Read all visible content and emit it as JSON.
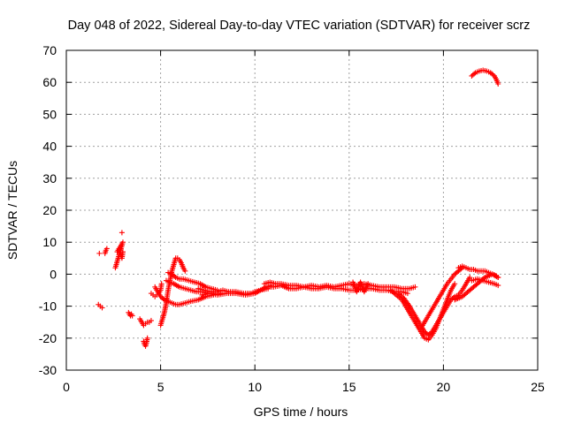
{
  "chart_data": {
    "type": "scatter",
    "title": "Day 048 of 2022, Sidereal Day-to-day VTEC variation (SDTVAR) for receiver scrz",
    "xlabel": "GPS time / hours",
    "ylabel": "SDTVAR / TECUs",
    "xlim": [
      0,
      25
    ],
    "ylim": [
      -30,
      70
    ],
    "xticks": [
      0,
      5,
      10,
      15,
      20,
      25
    ],
    "yticks": [
      -30,
      -20,
      -10,
      0,
      10,
      20,
      30,
      40,
      50,
      60,
      70
    ],
    "grid": true,
    "marker": "+",
    "color": "#ff0000",
    "series": [
      {
        "name": "SDTVAR",
        "segments": [
          {
            "x": [
              1.7,
              1.8,
              1.9
            ],
            "y": [
              -9.5,
              -10,
              -10.5
            ]
          },
          {
            "x": [
              1.75
            ],
            "y": [
              6.5
            ]
          },
          {
            "x": [
              2.05,
              2.1,
              2.15
            ],
            "y": [
              6.5,
              7.5,
              8
            ]
          },
          {
            "x": [
              2.6,
              2.65,
              2.7,
              2.75,
              2.8,
              2.85,
              2.9,
              2.95,
              3.0,
              2.7,
              2.8,
              2.9,
              2.95,
              3.0
            ],
            "y": [
              2,
              3,
              4,
              5,
              6,
              7,
              8,
              9,
              10,
              7,
              8,
              6,
              5,
              7
            ]
          },
          {
            "x": [
              2.95
            ],
            "y": [
              13
            ]
          },
          {
            "x": [
              3.3,
              3.35,
              3.4,
              3.45,
              3.5
            ],
            "y": [
              -12,
              -12.5,
              -13,
              -12.5,
              -13
            ]
          },
          {
            "x": [
              3.9,
              4.0,
              4.1,
              4.2,
              4.3,
              4.4,
              4.5
            ],
            "y": [
              -14,
              -15,
              -16,
              -15.5,
              -15,
              -15,
              -14.5
            ]
          },
          {
            "x": [
              4.1,
              4.15,
              4.2,
              4.25,
              4.3
            ],
            "y": [
              -21,
              -22,
              -22.5,
              -21.5,
              -20
            ]
          },
          {
            "x": [
              4.5,
              4.6,
              4.7,
              4.8,
              4.9,
              5.0,
              5.05
            ],
            "y": [
              -6,
              -6.5,
              -7,
              -6.5,
              -6,
              -5,
              -3
            ]
          },
          {
            "x": [
              5.0,
              5.05,
              5.1,
              5.15,
              5.2,
              5.25,
              5.3,
              5.35,
              5.4,
              5.5,
              5.6,
              5.7,
              5.8,
              5.9,
              6.0,
              6.1,
              6.2,
              6.3
            ],
            "y": [
              -16,
              -15,
              -14,
              -13,
              -12,
              -10.5,
              -9,
              -7,
              -5,
              -2,
              1,
              3,
              5,
              5,
              4.5,
              3.5,
              2,
              1
            ]
          },
          {
            "x": [
              4.7,
              4.8,
              4.9,
              5.0,
              5.2,
              5.4,
              5.6,
              5.8,
              6.0,
              6.3,
              6.6,
              7.0,
              7.4,
              7.8
            ],
            "y": [
              -4,
              -5,
              -6,
              -7,
              -8,
              -8.5,
              -9,
              -9.5,
              -9.5,
              -9,
              -8.5,
              -8,
              -7,
              -6.5
            ]
          },
          {
            "x": [
              5.3,
              5.5,
              5.7,
              6.0,
              6.3,
              6.6,
              6.9,
              7.2,
              7.5,
              7.8,
              8.2
            ],
            "y": [
              -2,
              -2.5,
              -3,
              -4,
              -4.5,
              -5,
              -5.5,
              -5.5,
              -6,
              -6,
              -6
            ]
          },
          {
            "x": [
              5.4,
              5.6,
              5.8,
              6.0,
              6.2,
              6.5,
              6.8,
              7.1,
              7.4,
              7.7,
              8.0
            ],
            "y": [
              0.5,
              0,
              -1,
              -1.5,
              -1.5,
              -2,
              -2.5,
              -3,
              -4,
              -4.5,
              -5
            ]
          },
          {
            "x": [
              7.0,
              7.3,
              7.6,
              8.0,
              8.3,
              8.6,
              9.0,
              9.4,
              9.8,
              10.0,
              10.3,
              10.6,
              10.9
            ],
            "y": [
              -4.5,
              -5,
              -5.5,
              -5.5,
              -5,
              -5.5,
              -5.5,
              -6,
              -6,
              -5.5,
              -5,
              -4,
              -3.5
            ]
          },
          {
            "x": [
              7.2,
              7.6,
              8.0,
              8.5,
              9.0,
              9.5,
              10.0,
              10.3,
              10.7
            ],
            "y": [
              -6.5,
              -6,
              -6.5,
              -6,
              -6,
              -6.5,
              -6,
              -5,
              -4.5
            ]
          },
          {
            "x": [
              10.5,
              10.8,
              11.1,
              11.4,
              11.8,
              12.2,
              12.6,
              13.0,
              13.4,
              13.8,
              14.2,
              14.6,
              15.0,
              15.4,
              15.8,
              16.2,
              16.6,
              17.0,
              17.4,
              17.8,
              18.2,
              18.5
            ],
            "y": [
              -3,
              -2.5,
              -3,
              -3,
              -3.5,
              -3.5,
              -4,
              -3.5,
              -4,
              -3.5,
              -4,
              -3.5,
              -3,
              -3.5,
              -3,
              -3.5,
              -4,
              -4,
              -4,
              -4.5,
              -4.5,
              -4
            ]
          },
          {
            "x": [
              10.6,
              11.0,
              11.4,
              11.8,
              12.2,
              12.6,
              13.0,
              13.4,
              13.8,
              14.2,
              14.6,
              15.0,
              15.4,
              15.8,
              16.2,
              16.6,
              17.0,
              17.4,
              17.8,
              18.1
            ],
            "y": [
              -4,
              -4,
              -3.5,
              -4.5,
              -4.5,
              -4,
              -4.5,
              -4.5,
              -4,
              -4.5,
              -4.5,
              -5,
              -5,
              -4.5,
              -4.5,
              -5,
              -5,
              -5.5,
              -5.5,
              -6
            ]
          },
          {
            "x": [
              15.2,
              15.4,
              15.6,
              15.8,
              16.0
            ],
            "y": [
              -2.5,
              -5.5,
              -2.5,
              -5.5,
              -3
            ]
          },
          {
            "x": [
              17.2,
              17.5,
              17.8,
              18.0,
              18.2,
              18.4,
              18.6,
              18.8,
              19.0,
              19.2,
              19.4,
              19.6,
              19.8,
              20.0,
              20.2,
              20.4,
              20.6
            ],
            "y": [
              -5,
              -6.5,
              -8,
              -10,
              -12,
              -14,
              -16,
              -18,
              -20,
              -20.5,
              -19,
              -17,
              -14,
              -11,
              -8,
              -5,
              -3
            ]
          },
          {
            "x": [
              17.6,
              17.9,
              18.2,
              18.5,
              18.8,
              19.0,
              19.2,
              19.4,
              19.6,
              19.8,
              20.0,
              20.2,
              20.4,
              20.6,
              20.8,
              21.0,
              21.2,
              21.4
            ],
            "y": [
              -6,
              -7.5,
              -10,
              -13,
              -16,
              -18,
              -19,
              -18,
              -16,
              -14,
              -12,
              -10,
              -8,
              -7,
              -6.5,
              -5,
              -3,
              -1
            ]
          },
          {
            "x": [
              18.8,
              19.0,
              19.2,
              19.4,
              19.6,
              19.8,
              20.0,
              20.2,
              20.4,
              20.6,
              20.8,
              21.0
            ],
            "y": [
              -17,
              -15,
              -13,
              -11,
              -9,
              -7,
              -5,
              -3,
              -1.5,
              0,
              1,
              2
            ]
          },
          {
            "x": [
              20.6,
              21.0,
              21.4,
              21.8,
              22.2,
              22.6,
              22.9
            ],
            "y": [
              -8,
              -7,
              -5,
              -3,
              -1,
              0,
              -1
            ]
          },
          {
            "x": [
              20.8,
              21.0,
              21.2,
              21.4,
              21.6,
              21.8,
              22.0,
              22.2,
              22.4,
              22.6,
              22.8,
              22.9
            ],
            "y": [
              2,
              2.5,
              2,
              1.5,
              1.5,
              1,
              1,
              1,
              0.5,
              0,
              -0.5,
              -1
            ]
          },
          {
            "x": [
              21.5,
              21.8,
              22.1,
              22.4,
              22.7,
              22.9
            ],
            "y": [
              -2,
              -1.5,
              -2,
              -2.5,
              -3,
              -3.5
            ]
          },
          {
            "x": [
              21.5,
              21.7,
              21.9,
              22.1,
              22.3,
              22.5,
              22.7,
              22.8,
              22.9
            ],
            "y": [
              62,
              63,
              63.5,
              63.8,
              63.5,
              63,
              62,
              61,
              59.5
            ]
          }
        ]
      }
    ]
  }
}
